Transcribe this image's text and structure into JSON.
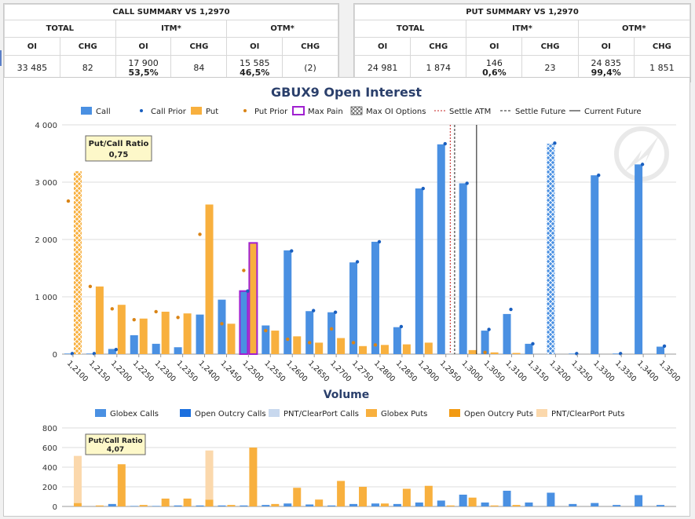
{
  "call_summary": {
    "title": "CALL SUMMARY VS 1,2970",
    "groups": [
      "TOTAL",
      "ITM*",
      "OTM*"
    ],
    "subheaders": [
      "OI",
      "CHG",
      "OI",
      "CHG",
      "OI",
      "CHG"
    ],
    "total": {
      "oi": "33 485",
      "chg": "82"
    },
    "itm": {
      "oi": "17 900",
      "pct": "53,5%",
      "chg": "84"
    },
    "otm": {
      "oi": "15 585",
      "pct": "46,5%",
      "chg": "(2)"
    }
  },
  "put_summary": {
    "title": "PUT SUMMARY VS 1,2970",
    "groups": [
      "TOTAL",
      "ITM*",
      "OTM*"
    ],
    "subheaders": [
      "OI",
      "CHG",
      "OI",
      "CHG",
      "OI",
      "CHG"
    ],
    "total": {
      "oi": "24 981",
      "chg": "1 874"
    },
    "itm": {
      "oi": "146",
      "pct": "0,6%",
      "chg": "23"
    },
    "otm": {
      "oi": "24 835",
      "pct": "99,4%",
      "chg": "1 851"
    }
  },
  "colors": {
    "call": "#4a90e2",
    "put": "#f8b03e",
    "call_prior": "#1a5fbf",
    "put_prior": "#d98416",
    "max_pain": "#a020d0",
    "settle_atm": "#c42020",
    "open_outcry_calls": "#1b6fde",
    "pnt_calls": "#c8d8ee",
    "open_outcry_puts": "#f29a12",
    "pnt_puts": "#fbd8ac",
    "title": "#2a3f6b"
  },
  "chart_data": [
    {
      "type": "bar",
      "title": "GBUX9 Open Interest",
      "categories": [
        "1,2100",
        "1,2150",
        "1,2200",
        "1,2250",
        "1,2300",
        "1,2350",
        "1,2400",
        "1,2450",
        "1,2500",
        "1,2550",
        "1,2600",
        "1,2650",
        "1,2700",
        "1,2750",
        "1,2800",
        "1,2850",
        "1,2900",
        "1,2950",
        "1,3000",
        "1,3050",
        "1,3100",
        "1,3150",
        "1,3200",
        "1,3250",
        "1,3300",
        "1,3350",
        "1,3400",
        "1,3500"
      ],
      "series": [
        {
          "name": "Call",
          "values": [
            10,
            10,
            90,
            330,
            180,
            120,
            690,
            950,
            1100,
            500,
            1810,
            750,
            730,
            1600,
            1960,
            470,
            2890,
            3660,
            2980,
            410,
            700,
            180,
            3670,
            10,
            3120,
            10,
            3310,
            130
          ]
        },
        {
          "name": "Call Prior",
          "values": [
            10,
            10,
            80,
            null,
            null,
            null,
            null,
            null,
            1100,
            null,
            1800,
            760,
            730,
            1610,
            1960,
            480,
            2890,
            3670,
            2980,
            430,
            780,
            180,
            3680,
            10,
            3120,
            10,
            3310,
            140
          ]
        },
        {
          "name": "Put",
          "values": [
            3190,
            1180,
            860,
            620,
            740,
            710,
            2610,
            530,
            1940,
            410,
            310,
            200,
            280,
            140,
            160,
            170,
            200,
            0,
            70,
            30,
            20,
            0,
            0,
            0,
            0,
            0,
            0,
            0
          ]
        },
        {
          "name": "Put Prior",
          "values": [
            2670,
            1180,
            790,
            600,
            740,
            640,
            2090,
            530,
            1460,
            410,
            260,
            200,
            440,
            200,
            160,
            null,
            null,
            null,
            null,
            30,
            null,
            null,
            null,
            null,
            null,
            null,
            null,
            null
          ]
        }
      ],
      "max_pain_strike": "1,2500",
      "max_oi_options": [
        "1,2100 Put",
        "1,3200 Call"
      ],
      "legend": [
        "Call",
        "Call Prior",
        "Put",
        "Put Prior",
        "Max Pain",
        "Max OI Options",
        "Settle ATM",
        "Settle Future",
        "Current Future"
      ],
      "legend_position": "top",
      "reference_lines": {
        "settle_atm": 1.296,
        "settle_future": 1.297,
        "current_future": 1.302
      },
      "ylim": [
        0,
        4000
      ],
      "yticks": [
        "0",
        "1 000",
        "2 000",
        "3 000",
        "4 000"
      ],
      "grid": true,
      "annotation": {
        "title": "Put/Call Ratio",
        "value": "0,75"
      }
    },
    {
      "type": "bar",
      "title": "Volume",
      "categories": [
        "1,2100",
        "1,2150",
        "1,2200",
        "1,2250",
        "1,2300",
        "1,2350",
        "1,2400",
        "1,2450",
        "1,2500",
        "1,2550",
        "1,2600",
        "1,2650",
        "1,2700",
        "1,2750",
        "1,2800",
        "1,2850",
        "1,2900",
        "1,2950",
        "1,3000",
        "1,3050",
        "1,3100",
        "1,3150",
        "1,3200",
        "1,3250",
        "1,3300",
        "1,3350",
        "1,3400",
        "1,3500"
      ],
      "series": [
        {
          "name": "Globex Calls",
          "values": [
            0,
            0,
            25,
            5,
            5,
            10,
            10,
            10,
            10,
            15,
            30,
            20,
            10,
            25,
            30,
            25,
            40,
            60,
            120,
            40,
            160,
            40,
            140,
            25,
            35,
            15,
            115,
            15
          ]
        },
        {
          "name": "Open Outcry Calls",
          "values": [
            0,
            0,
            0,
            0,
            0,
            0,
            0,
            0,
            0,
            0,
            0,
            0,
            0,
            0,
            0,
            0,
            0,
            0,
            0,
            0,
            0,
            0,
            0,
            0,
            0,
            0,
            0,
            0
          ]
        },
        {
          "name": "PNT/ClearPort Calls",
          "values": [
            0,
            0,
            0,
            0,
            0,
            0,
            0,
            0,
            0,
            0,
            0,
            0,
            0,
            0,
            0,
            0,
            0,
            0,
            0,
            0,
            0,
            0,
            0,
            0,
            0,
            0,
            0,
            0
          ]
        },
        {
          "name": "Globex Puts",
          "values": [
            35,
            10,
            430,
            15,
            80,
            80,
            70,
            15,
            600,
            25,
            190,
            70,
            260,
            200,
            30,
            180,
            210,
            10,
            90,
            10,
            15,
            0,
            0,
            0,
            0,
            0,
            0,
            0
          ]
        },
        {
          "name": "Open Outcry Puts",
          "values": [
            0,
            0,
            0,
            0,
            0,
            0,
            0,
            0,
            0,
            0,
            0,
            0,
            0,
            0,
            0,
            0,
            0,
            0,
            0,
            0,
            0,
            0,
            0,
            0,
            0,
            0,
            0,
            0
          ]
        },
        {
          "name": "PNT/ClearPort Puts",
          "values": [
            480,
            0,
            0,
            0,
            0,
            0,
            500,
            0,
            0,
            0,
            0,
            0,
            0,
            0,
            0,
            0,
            0,
            0,
            0,
            0,
            0,
            0,
            0,
            0,
            0,
            0,
            0,
            0
          ]
        }
      ],
      "legend": [
        "Globex Calls",
        "Open Outcry Calls",
        "PNT/ClearPort Calls",
        "Globex Puts",
        "Open Outcry Puts",
        "PNT/ClearPort Puts"
      ],
      "legend_position": "top",
      "ylim": [
        0,
        800
      ],
      "yticks": [
        "0",
        "200",
        "400",
        "600",
        "800"
      ],
      "grid": true,
      "annotation": {
        "title": "Put/Call Ratio",
        "value": "4,07"
      }
    }
  ]
}
